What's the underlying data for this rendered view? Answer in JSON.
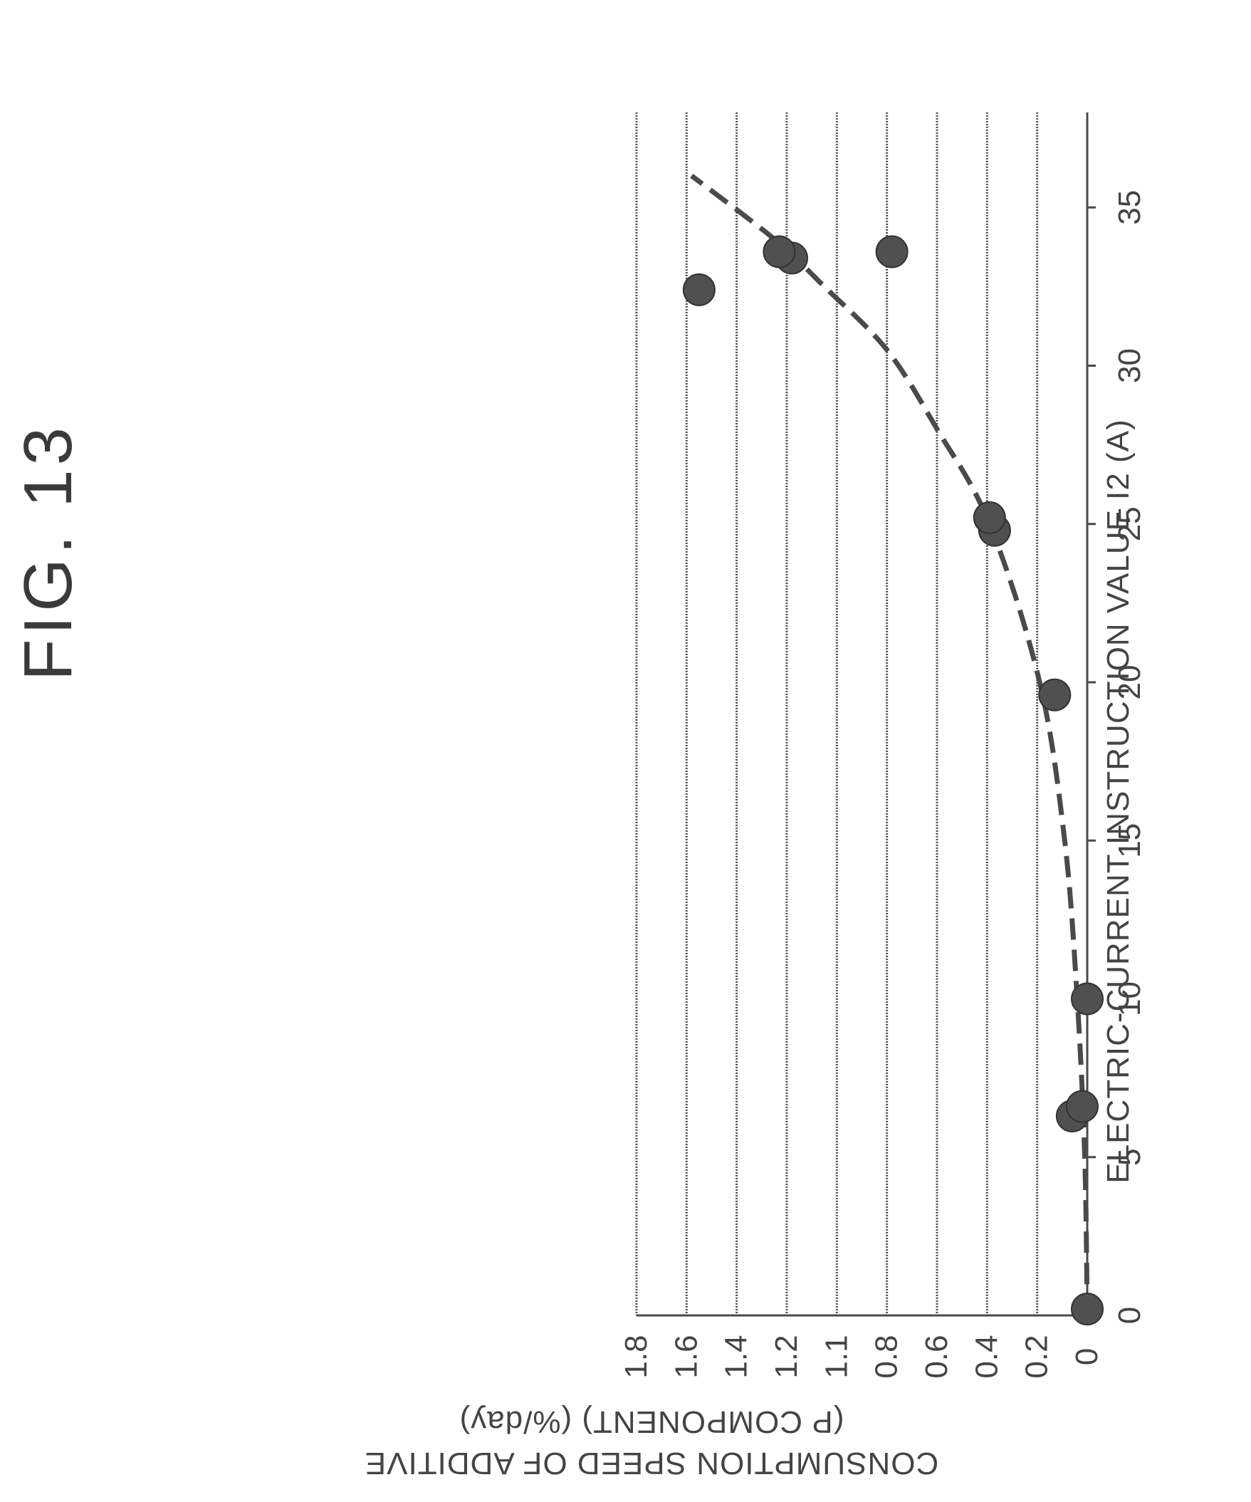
{
  "figure": {
    "title": "FIG. 13"
  },
  "chart_data": {
    "type": "scatter",
    "title": "FIG. 13",
    "xlabel": "ELECTRIC-CURRENT INSTRUCTION VALUE I2 (A)",
    "ylabel": [
      "CONSUMPTION SPEED OF ADDITIVE",
      "(P COMPONENT) (%/day)"
    ],
    "xlim": [
      0,
      38
    ],
    "ylim": [
      0,
      1.8
    ],
    "x_ticks": [
      0,
      5,
      10,
      15,
      20,
      25,
      30,
      35
    ],
    "y_ticks": [
      "0",
      "0.2",
      "0.4",
      "0.6",
      "0.8",
      "1.1",
      "1.2",
      "1.4",
      "1.6",
      "1.8"
    ],
    "grid": "horizontal",
    "series": [
      {
        "kind": "points",
        "points": [
          {
            "x": 0.2,
            "y": 0.0
          },
          {
            "x": 6.3,
            "y": 0.06
          },
          {
            "x": 6.6,
            "y": 0.02
          },
          {
            "x": 10.0,
            "y": 0.0
          },
          {
            "x": 19.6,
            "y": 0.13
          },
          {
            "x": 24.8,
            "y": 0.37
          },
          {
            "x": 25.2,
            "y": 0.39
          },
          {
            "x": 32.4,
            "y": 1.55
          },
          {
            "x": 33.4,
            "y": 1.18
          },
          {
            "x": 33.6,
            "y": 1.23
          },
          {
            "x": 33.6,
            "y": 0.78
          }
        ]
      },
      {
        "kind": "dashed-fit",
        "points": [
          {
            "x": 0,
            "y": 0.0
          },
          {
            "x": 5,
            "y": 0.01
          },
          {
            "x": 10,
            "y": 0.04
          },
          {
            "x": 15,
            "y": 0.09
          },
          {
            "x": 20,
            "y": 0.19
          },
          {
            "x": 25,
            "y": 0.39
          },
          {
            "x": 28,
            "y": 0.6
          },
          {
            "x": 30.5,
            "y": 0.8
          },
          {
            "x": 32.5,
            "y": 1.05
          },
          {
            "x": 34,
            "y": 1.25
          },
          {
            "x": 36,
            "y": 1.58
          }
        ]
      }
    ]
  }
}
